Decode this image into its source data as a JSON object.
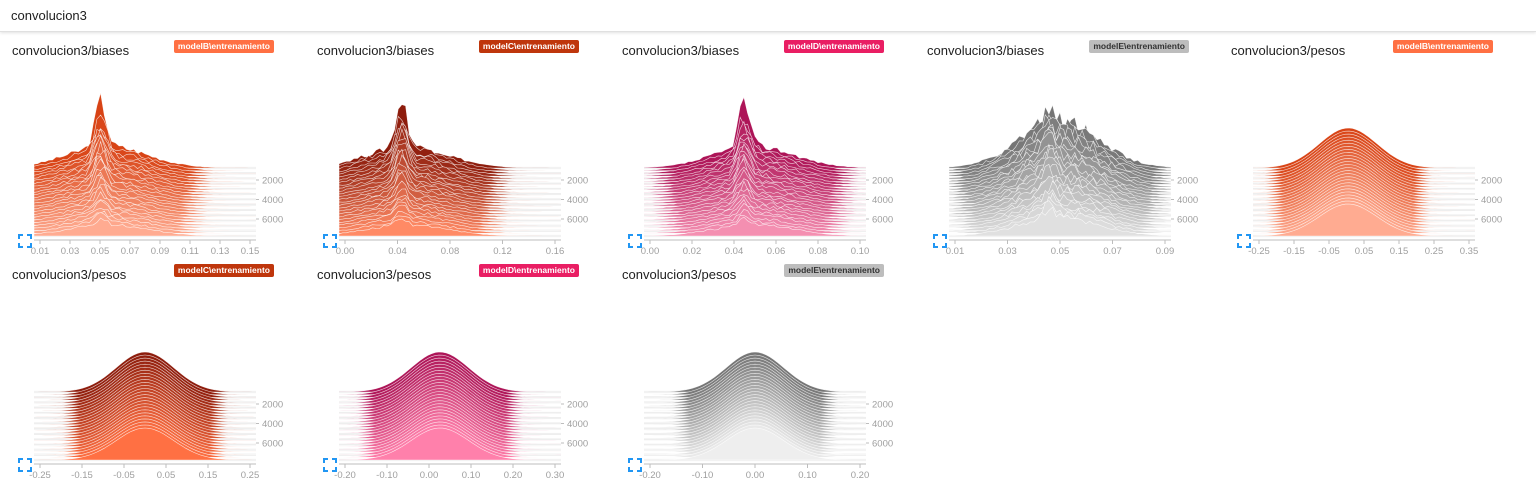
{
  "header": {
    "title": "convolucion3"
  },
  "chart_data": [
    {
      "type": "area",
      "title": "convolucion3/biases",
      "run": "modelB\\entrenamiento",
      "color": "#ff7043",
      "dark": "#d84315",
      "light": "#ffab91",
      "shape": "peaked",
      "peak_x": 0.045,
      "x_ticks": [
        "0.01",
        "0.03",
        "0.05",
        "0.07",
        "0.09",
        "0.11",
        "0.13",
        "0.15"
      ],
      "xlim": [
        0.0,
        0.15
      ],
      "y_ticks": [
        "2000",
        "4000",
        "6000"
      ],
      "steps": [
        0,
        7000
      ]
    },
    {
      "type": "area",
      "title": "convolucion3/biases",
      "run": "modelC\\entrenamiento",
      "color": "#bf360c",
      "dark": "#8d1c0c",
      "light": "#ff8a65",
      "shape": "peaked",
      "peak_x": 0.045,
      "x_ticks": [
        "0.00",
        "0.04",
        "0.08",
        "0.12",
        "0.16"
      ],
      "xlim": [
        0.0,
        0.16
      ],
      "y_ticks": [
        "2000",
        "4000",
        "6000"
      ],
      "steps": [
        0,
        7000
      ]
    },
    {
      "type": "area",
      "title": "convolucion3/biases",
      "run": "modelD\\entrenamiento",
      "color": "#e91e63",
      "dark": "#ad1457",
      "light": "#f48fb1",
      "shape": "peaked",
      "peak_x": 0.045,
      "x_ticks": [
        "0.00",
        "0.02",
        "0.04",
        "0.06",
        "0.08",
        "0.10"
      ],
      "xlim": [
        0.0,
        0.1
      ],
      "y_ticks": [
        "2000",
        "4000",
        "6000"
      ],
      "steps": [
        0,
        7000
      ]
    },
    {
      "type": "area",
      "title": "convolucion3/biases",
      "run": "modelE\\entrenamiento",
      "color": "#9e9e9e",
      "dark": "#757575",
      "light": "#e0e0e0",
      "shape": "peaked",
      "peak_x": 0.045,
      "x_ticks": [
        "0.01",
        "0.03",
        "0.05",
        "0.07",
        "0.09"
      ],
      "xlim": [
        0.0,
        0.1
      ],
      "y_ticks": [
        "2000",
        "4000",
        "6000"
      ],
      "steps": [
        0,
        7000
      ]
    },
    {
      "type": "area",
      "title": "convolucion3/pesos",
      "run": "modelB\\entrenamiento",
      "color": "#ff7043",
      "dark": "#d84315",
      "light": "#ffab91",
      "shape": "gaussian",
      "peak_x": 0.0,
      "x_ticks": [
        "-0.25",
        "-0.15",
        "-0.05",
        "0.05",
        "0.15",
        "0.25",
        "0.35"
      ],
      "xlim": [
        -0.3,
        0.4
      ],
      "y_ticks": [
        "2000",
        "4000",
        "6000"
      ],
      "steps": [
        0,
        7000
      ]
    },
    {
      "type": "area",
      "title": "convolucion3/pesos",
      "run": "modelC\\entrenamiento",
      "color": "#bf360c",
      "dark": "#8d1c0c",
      "light": "#ff7043",
      "shape": "gaussian",
      "peak_x": 0.0,
      "x_ticks": [
        "-0.25",
        "-0.15",
        "-0.05",
        "0.05",
        "0.15",
        "0.25"
      ],
      "xlim": [
        -0.3,
        0.3
      ],
      "y_ticks": [
        "2000",
        "4000",
        "6000"
      ],
      "steps": [
        0,
        7000
      ]
    },
    {
      "type": "area",
      "title": "convolucion3/pesos",
      "run": "modelD\\entrenamiento",
      "color": "#e91e63",
      "dark": "#ad1457",
      "light": "#ff80ab",
      "shape": "gaussian",
      "peak_x": 0.0,
      "x_ticks": [
        "-0.20",
        "-0.10",
        "0.00",
        "0.10",
        "0.20",
        "0.30"
      ],
      "xlim": [
        -0.25,
        0.3
      ],
      "y_ticks": [
        "2000",
        "4000",
        "6000"
      ],
      "steps": [
        0,
        7000
      ]
    },
    {
      "type": "area",
      "title": "convolucion3/pesos",
      "run": "modelE\\entrenamiento",
      "color": "#9e9e9e",
      "dark": "#757575",
      "light": "#eeeeee",
      "shape": "gaussian",
      "peak_x": 0.0,
      "x_ticks": [
        "-0.20",
        "-0.10",
        "0.00",
        "0.10",
        "0.20"
      ],
      "xlim": [
        -0.2,
        0.2
      ],
      "y_ticks": [
        "2000",
        "4000",
        "6000"
      ],
      "steps": [
        0,
        7000
      ]
    }
  ]
}
